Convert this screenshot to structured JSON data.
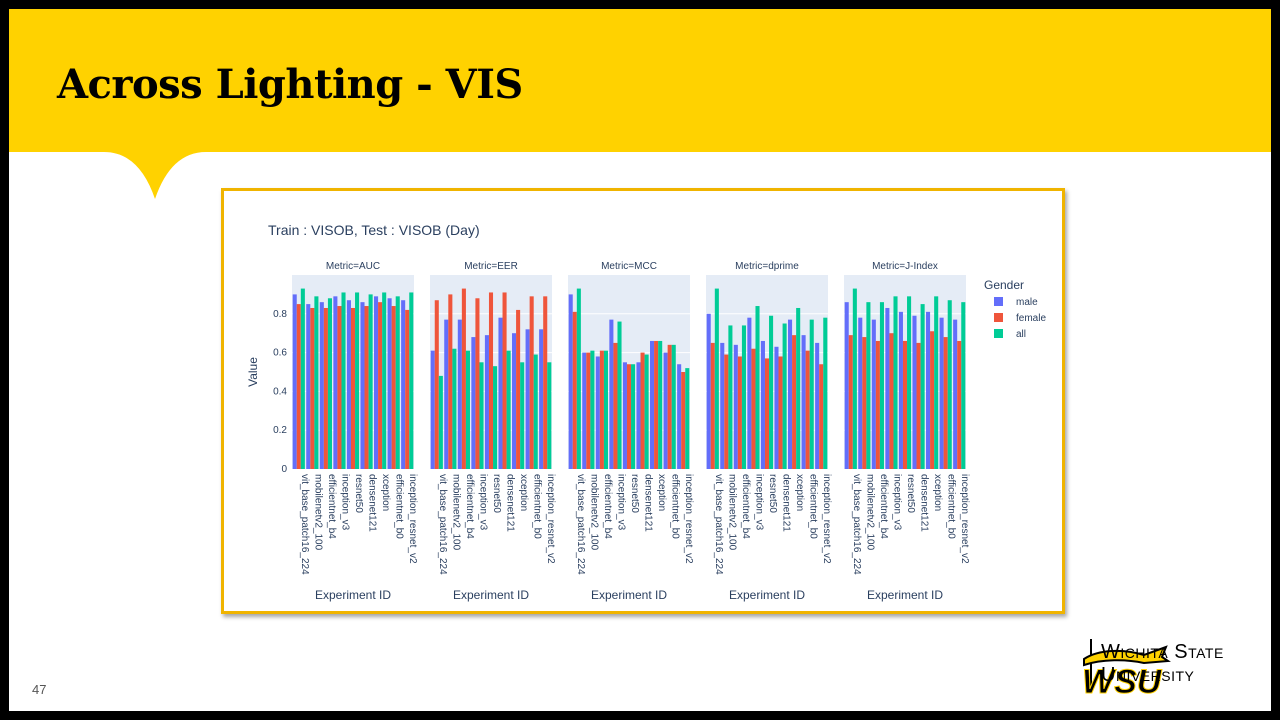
{
  "slide": {
    "title": "Across Lighting - VIS",
    "page_number": "47",
    "logo": {
      "line1": "Wichita State",
      "line2": "University",
      "mark": "WSU"
    }
  },
  "colors": {
    "banner": "#FFD200",
    "frame": "#F0B400",
    "plot_bg": "#E5ECF6",
    "male": "#636EFA",
    "female": "#EF553B",
    "all": "#00CC96"
  },
  "chart_data": {
    "type": "bar",
    "title": "Train : VISOB, Test : VISOB (Day)",
    "ylabel": "Value",
    "xlabel": "Experiment ID",
    "ylim": [
      0,
      1.0
    ],
    "yticks": [
      0,
      0.2,
      0.4,
      0.6,
      0.8
    ],
    "ytick_labels": [
      "0",
      "0.2",
      "0.4",
      "0.6",
      "0.8"
    ],
    "legend_title": "Gender",
    "legend_position": "right",
    "series_names": [
      "male",
      "female",
      "all"
    ],
    "categories": [
      "vit_base_patch16_224",
      "mobilenetv2_100",
      "efficientnet_b4",
      "inception_v3",
      "resnet50",
      "densenet121",
      "xception",
      "efficientnet_b0",
      "inception_resnet_v2"
    ],
    "facets": [
      {
        "label": "Metric=AUC",
        "male": [
          0.9,
          0.85,
          0.86,
          0.89,
          0.87,
          0.86,
          0.89,
          0.88,
          0.87
        ],
        "female": [
          0.85,
          0.83,
          0.83,
          0.84,
          0.83,
          0.84,
          0.86,
          0.84,
          0.82
        ],
        "all": [
          0.93,
          0.89,
          0.88,
          0.91,
          0.91,
          0.9,
          0.91,
          0.89,
          0.91
        ]
      },
      {
        "label": "Metric=EER",
        "male": [
          0.61,
          0.77,
          0.77,
          0.68,
          0.69,
          0.78,
          0.7,
          0.72,
          0.72
        ],
        "female": [
          0.87,
          0.9,
          0.93,
          0.88,
          0.91,
          0.91,
          0.82,
          0.89,
          0.89
        ],
        "all": [
          0.48,
          0.62,
          0.61,
          0.55,
          0.53,
          0.61,
          0.55,
          0.59,
          0.55
        ]
      },
      {
        "label": "Metric=MCC",
        "male": [
          0.9,
          0.6,
          0.58,
          0.77,
          0.55,
          0.55,
          0.66,
          0.6,
          0.54
        ],
        "female": [
          0.81,
          0.6,
          0.61,
          0.65,
          0.54,
          0.6,
          0.66,
          0.64,
          0.5
        ],
        "all": [
          0.93,
          0.61,
          0.61,
          0.76,
          0.54,
          0.59,
          0.66,
          0.64,
          0.52
        ]
      },
      {
        "label": "Metric=dprime",
        "male": [
          0.8,
          0.65,
          0.64,
          0.78,
          0.66,
          0.63,
          0.77,
          0.69,
          0.65
        ],
        "female": [
          0.65,
          0.59,
          0.58,
          0.62,
          0.57,
          0.58,
          0.69,
          0.61,
          0.54
        ],
        "all": [
          0.93,
          0.74,
          0.74,
          0.84,
          0.79,
          0.75,
          0.83,
          0.77,
          0.78
        ]
      },
      {
        "label": "Metric=J-Index",
        "male": [
          0.86,
          0.78,
          0.77,
          0.83,
          0.81,
          0.79,
          0.81,
          0.78,
          0.77
        ],
        "female": [
          0.69,
          0.68,
          0.66,
          0.7,
          0.66,
          0.65,
          0.71,
          0.68,
          0.66
        ],
        "all": [
          0.93,
          0.86,
          0.86,
          0.89,
          0.89,
          0.85,
          0.89,
          0.87,
          0.86
        ]
      }
    ]
  }
}
